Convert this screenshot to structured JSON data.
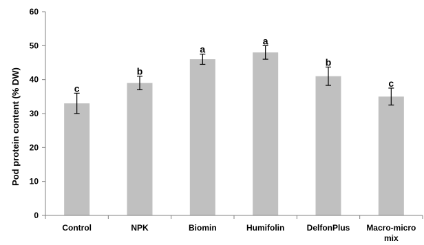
{
  "chart_data": {
    "type": "bar",
    "title": "",
    "xlabel": "",
    "ylabel": "Pod protein content (% DW)",
    "ylim": [
      0,
      60
    ],
    "yticks": [
      0,
      10,
      20,
      30,
      40,
      50,
      60
    ],
    "categories": [
      "Control",
      "NPK",
      "Biomin",
      "Humifolin",
      "DelfonPlus",
      "Macro-micro mix"
    ],
    "category_lines": [
      [
        "Control"
      ],
      [
        "NPK"
      ],
      [
        "Biomin"
      ],
      [
        "Humifolin"
      ],
      [
        "DelfonPlus"
      ],
      [
        "Macro-micro",
        "mix"
      ]
    ],
    "values": [
      33,
      39,
      46,
      48,
      41,
      35
    ],
    "errors": [
      3,
      2,
      1.5,
      2,
      2.7,
      2.5
    ],
    "significance_letters": [
      "c",
      "b",
      "a",
      "a",
      "b",
      "c"
    ],
    "bar_color": "#c0c0c0",
    "grid": false,
    "legend": "none"
  }
}
